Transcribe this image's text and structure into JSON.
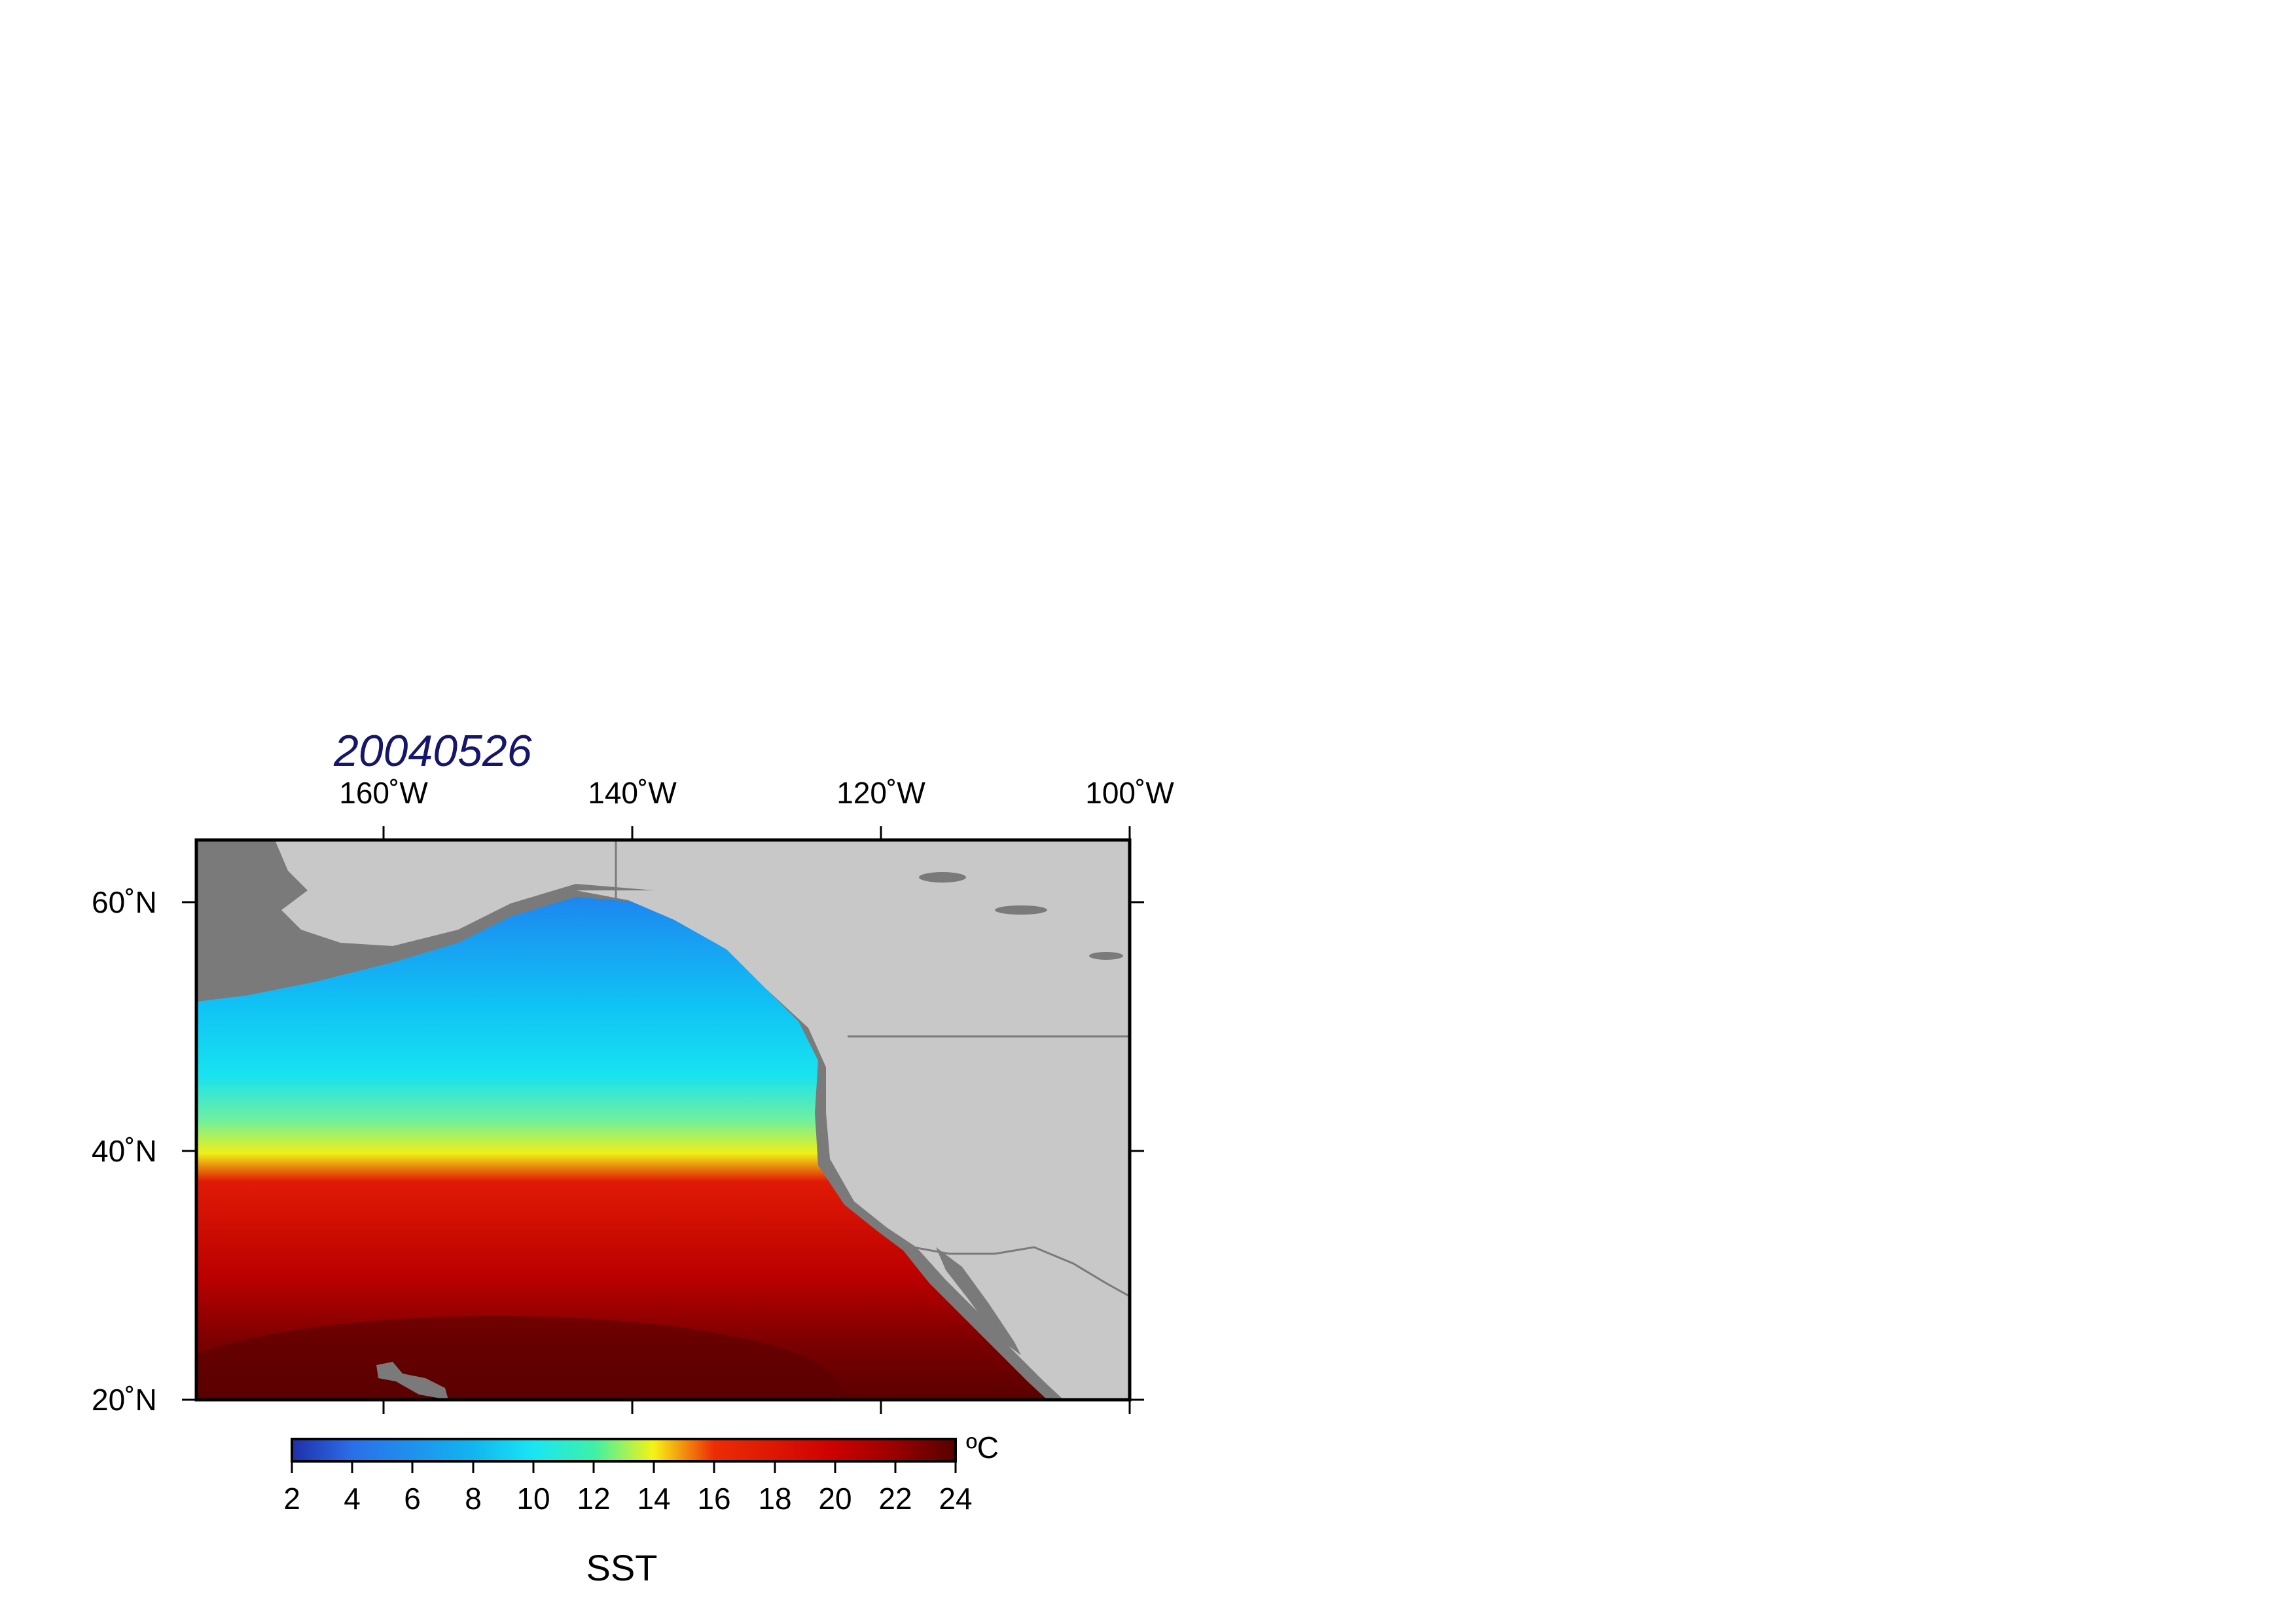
{
  "map": {
    "title": "20040526",
    "lon_ticks": [
      "160˚W",
      "140˚W",
      "120˚W",
      "100˚W"
    ],
    "lat_ticks": [
      "60˚N",
      "40˚N",
      "20˚N"
    ],
    "extent": {
      "lon": [
        -175,
        -100
      ],
      "lat": [
        20,
        65
      ]
    },
    "variable_label": "SST",
    "colors": {
      "land": "#c8c8c8",
      "shelf": "#7a7a7a",
      "frame": "#000000",
      "title": "#15166a"
    }
  },
  "colorbar": {
    "unit": "ºC",
    "tick_labels": [
      "2",
      "4",
      "6",
      "8",
      "10",
      "12",
      "14",
      "16",
      "18",
      "20",
      "22",
      "24"
    ],
    "range": [
      2,
      24
    ],
    "gradient_stops": [
      {
        "value": 2,
        "color": "#1f2fa8"
      },
      {
        "value": 4,
        "color": "#2b6fe8"
      },
      {
        "value": 8,
        "color": "#12b5f0"
      },
      {
        "value": 10,
        "color": "#19e6f2"
      },
      {
        "value": 12,
        "color": "#3ef0a8"
      },
      {
        "value": 14,
        "color": "#f7f314"
      },
      {
        "value": 16,
        "color": "#ec2d06"
      },
      {
        "value": 20,
        "color": "#cc0000"
      },
      {
        "value": 22,
        "color": "#990000"
      },
      {
        "value": 24,
        "color": "#560000"
      }
    ]
  }
}
